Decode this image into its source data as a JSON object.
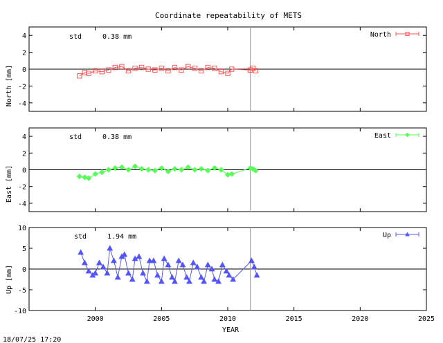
{
  "chart_data": {
    "title": "Coordinate repeatability of METS",
    "xlabel": "YEAR",
    "xlim": [
      1995,
      2025
    ],
    "xticks": [
      2000,
      2005,
      2010,
      2015,
      2020,
      2025
    ],
    "reference_line_x": 2011.7,
    "timestamp": "18/07/25 17:20",
    "panels": [
      {
        "type": "scatter",
        "ylabel": "North [mm]",
        "ylim": [
          -5,
          5
        ],
        "yticks": [
          4,
          2,
          0,
          -2,
          -4
        ],
        "std_label": "std",
        "std_value": "0.38 mm",
        "legend": "North",
        "legend_position": "top-right",
        "color": "#ff5555",
        "marker": "square",
        "series": {
          "name": "North",
          "x": [
            1998.8,
            1999.2,
            1999.5,
            2000.0,
            2000.5,
            2001.0,
            2001.5,
            2002.0,
            2002.5,
            2003.0,
            2003.5,
            2004.0,
            2004.5,
            2005.0,
            2005.5,
            2006.0,
            2006.5,
            2007.0,
            2007.5,
            2008.0,
            2008.5,
            2009.0,
            2009.5,
            2010.0,
            2010.3,
            2011.7,
            2011.9,
            2012.1
          ],
          "y": [
            -0.8,
            -0.4,
            -0.5,
            -0.2,
            -0.3,
            -0.1,
            0.2,
            0.3,
            -0.2,
            0.1,
            0.2,
            0.0,
            -0.1,
            0.1,
            -0.2,
            0.2,
            -0.1,
            0.3,
            0.1,
            -0.2,
            0.2,
            0.1,
            -0.3,
            -0.5,
            0.0,
            -0.1,
            0.1,
            -0.2
          ]
        }
      },
      {
        "type": "scatter",
        "ylabel": "East [mm]",
        "ylim": [
          -5,
          5
        ],
        "yticks": [
          4,
          2,
          0,
          -2,
          -4
        ],
        "std_label": "std",
        "std_value": "0.38 mm",
        "legend": "East",
        "legend_position": "top-right",
        "color": "#55ff55",
        "marker": "diamond",
        "series": {
          "name": "East",
          "x": [
            1998.8,
            1999.2,
            1999.5,
            2000.0,
            2000.5,
            2001.0,
            2001.5,
            2002.0,
            2002.5,
            2003.0,
            2003.5,
            2004.0,
            2004.5,
            2005.0,
            2005.5,
            2006.0,
            2006.5,
            2007.0,
            2007.5,
            2008.0,
            2008.5,
            2009.0,
            2009.5,
            2010.0,
            2010.3,
            2011.7,
            2011.9,
            2012.1
          ],
          "y": [
            -0.8,
            -0.9,
            -1.0,
            -0.5,
            -0.3,
            0.0,
            0.2,
            0.3,
            0.0,
            0.4,
            0.1,
            0.0,
            -0.1,
            0.2,
            -0.2,
            0.1,
            0.0,
            0.3,
            0.0,
            0.1,
            -0.1,
            0.2,
            0.0,
            -0.6,
            -0.5,
            0.2,
            0.1,
            -0.1
          ]
        }
      },
      {
        "type": "scatter",
        "ylabel": "Up [mm]",
        "ylim": [
          -10,
          10
        ],
        "yticks": [
          10,
          5,
          0,
          -5,
          -10
        ],
        "std_label": "std",
        "std_value": "1.94 mm",
        "legend": "Up",
        "legend_position": "top-right",
        "color": "#5555ff",
        "marker": "triangle",
        "series": {
          "name": "Up",
          "x": [
            1998.9,
            1999.2,
            1999.5,
            1999.8,
            2000.0,
            2000.3,
            2000.6,
            2000.9,
            2001.1,
            2001.4,
            2001.7,
            2002.0,
            2002.2,
            2002.5,
            2002.8,
            2003.0,
            2003.3,
            2003.6,
            2003.9,
            2004.1,
            2004.4,
            2004.7,
            2005.0,
            2005.2,
            2005.5,
            2005.8,
            2006.0,
            2006.3,
            2006.6,
            2006.9,
            2007.1,
            2007.4,
            2007.7,
            2008.0,
            2008.2,
            2008.5,
            2008.8,
            2009.0,
            2009.3,
            2009.6,
            2009.9,
            2010.1,
            2010.4,
            2011.8,
            2012.0,
            2012.2
          ],
          "y": [
            4.0,
            1.5,
            -0.5,
            -1.5,
            -1.0,
            1.5,
            0.5,
            -1.0,
            5.0,
            2.0,
            -2.0,
            3.0,
            3.5,
            -1.0,
            -2.5,
            2.5,
            3.0,
            -1.0,
            -3.0,
            2.0,
            2.0,
            -1.5,
            -3.0,
            2.5,
            1.0,
            -2.0,
            -3.0,
            2.0,
            1.0,
            -2.0,
            -3.0,
            1.5,
            0.5,
            -2.0,
            -3.0,
            1.0,
            0.0,
            -2.5,
            -3.0,
            1.0,
            -0.5,
            -1.5,
            -2.5,
            2.0,
            0.5,
            -1.5
          ]
        }
      }
    ]
  }
}
